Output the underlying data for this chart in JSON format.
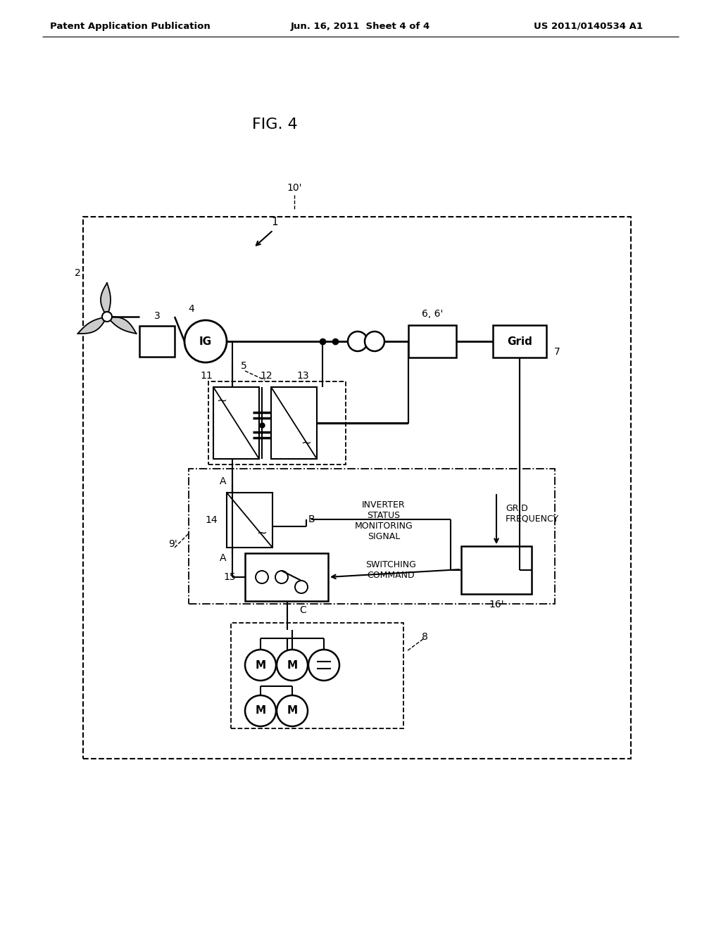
{
  "bg": "#ffffff",
  "lc": "#000000",
  "header_left": "Patent Application Publication",
  "header_mid": "Jun. 16, 2011  Sheet 4 of 4",
  "header_right": "US 2011/0140534 A1",
  "fig_label": "FIG. 4"
}
